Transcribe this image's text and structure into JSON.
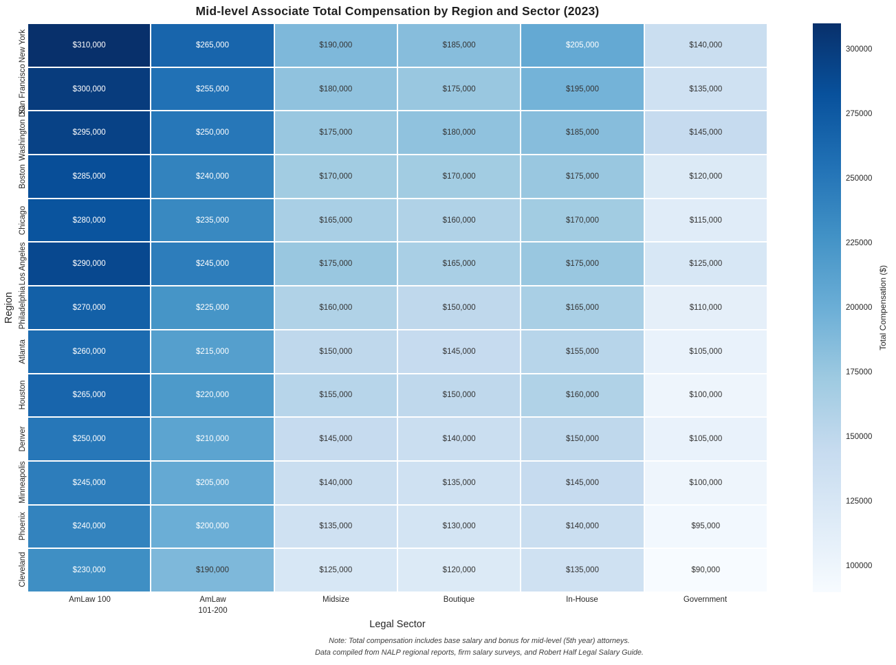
{
  "chart_data": {
    "type": "heatmap",
    "title": "Mid-level Associate Total Compensation by Region and Sector (2023)",
    "xlabel": "Legal Sector",
    "ylabel": "Region",
    "rows": [
      "New York",
      "San Francisco",
      "Washington DC",
      "Boston",
      "Chicago",
      "Los Angeles",
      "Philadelphia",
      "Atlanta",
      "Houston",
      "Denver",
      "Minneapolis",
      "Phoenix",
      "Cleveland"
    ],
    "columns": [
      "AmLaw 100",
      "AmLaw 101-200",
      "Midsize",
      "Boutique",
      "In-House",
      "Government"
    ],
    "xtick_lines": [
      [
        "AmLaw 100"
      ],
      [
        "AmLaw",
        "101-200"
      ],
      [
        "Midsize"
      ],
      [
        "Boutique"
      ],
      [
        "In-House"
      ],
      [
        "Government"
      ]
    ],
    "values": [
      [
        310000,
        265000,
        190000,
        185000,
        205000,
        140000
      ],
      [
        300000,
        255000,
        180000,
        175000,
        195000,
        135000
      ],
      [
        295000,
        250000,
        175000,
        180000,
        185000,
        145000
      ],
      [
        285000,
        240000,
        170000,
        170000,
        175000,
        120000
      ],
      [
        280000,
        235000,
        165000,
        160000,
        170000,
        115000
      ],
      [
        290000,
        245000,
        175000,
        165000,
        175000,
        125000
      ],
      [
        270000,
        225000,
        160000,
        150000,
        165000,
        110000
      ],
      [
        260000,
        215000,
        150000,
        145000,
        155000,
        105000
      ],
      [
        265000,
        220000,
        155000,
        150000,
        160000,
        100000
      ],
      [
        250000,
        210000,
        145000,
        140000,
        150000,
        105000
      ],
      [
        245000,
        205000,
        140000,
        135000,
        145000,
        100000
      ],
      [
        240000,
        200000,
        135000,
        130000,
        140000,
        95000
      ],
      [
        230000,
        190000,
        125000,
        120000,
        135000,
        90000
      ]
    ],
    "value_prefix": "$",
    "white_text_threshold": 200000,
    "cell_text_dark": "#333333",
    "cell_text_light": "#ffffff",
    "colormap": [
      "#f7fbff",
      "#deebf7",
      "#c6dbef",
      "#9ecae1",
      "#6baed6",
      "#4292c6",
      "#2171b5",
      "#08519c",
      "#08306b"
    ],
    "colorbar": {
      "label": "Total Compensation ($)",
      "vmin": 90000,
      "vmax": 310000,
      "ticks": [
        100000,
        125000,
        150000,
        175000,
        200000,
        225000,
        250000,
        275000,
        300000
      ]
    },
    "note": [
      "Note: Total compensation includes base salary and bonus for mid-level (5th year) attorneys.",
      "Data compiled from NALP regional reports, firm salary surveys, and Robert Half Legal Salary Guide."
    ],
    "grid": false,
    "legend_position": "right-colorbar"
  }
}
